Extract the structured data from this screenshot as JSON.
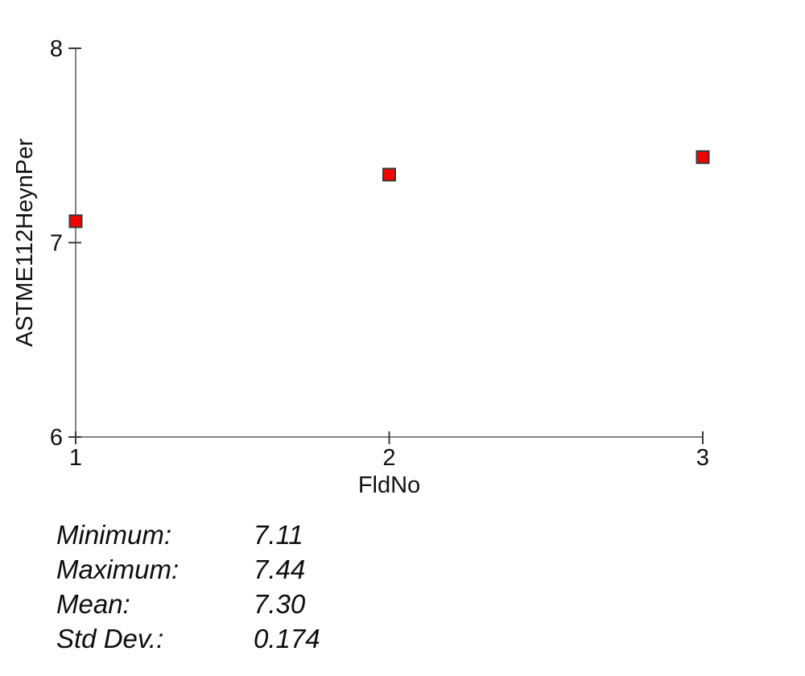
{
  "chart_data": {
    "type": "scatter",
    "title": "",
    "xlabel": "FldNo",
    "ylabel": "ASTME112HeynPer",
    "x": [
      1,
      2,
      3
    ],
    "y": [
      7.11,
      7.35,
      7.44
    ],
    "xlim": [
      1,
      3
    ],
    "ylim": [
      6,
      8
    ],
    "x_ticks": [
      "1",
      "2",
      "3"
    ],
    "y_ticks": [
      "6",
      "7",
      "8"
    ],
    "x_tick_values": [
      1,
      2,
      3
    ],
    "y_tick_values": [
      6,
      7,
      8
    ],
    "grid": false,
    "legend": false,
    "marker": {
      "shape": "square",
      "size": 15,
      "fill": "#f20400",
      "stroke": "#3a3a3a"
    }
  },
  "stats": {
    "rows": [
      {
        "label": "Minimum:",
        "value": "7.11"
      },
      {
        "label": "Maximum:",
        "value": "7.44"
      },
      {
        "label": "Mean:",
        "value": "7.30"
      },
      {
        "label": "Std Dev.:",
        "value": "0.174"
      }
    ]
  },
  "colors": {
    "background": "#ffffff",
    "axis": "#5a5a5a",
    "tick": "#3a3a3a",
    "text": "#111111",
    "marker_fill": "#f20400",
    "marker_stroke": "#3a3a3a"
  }
}
